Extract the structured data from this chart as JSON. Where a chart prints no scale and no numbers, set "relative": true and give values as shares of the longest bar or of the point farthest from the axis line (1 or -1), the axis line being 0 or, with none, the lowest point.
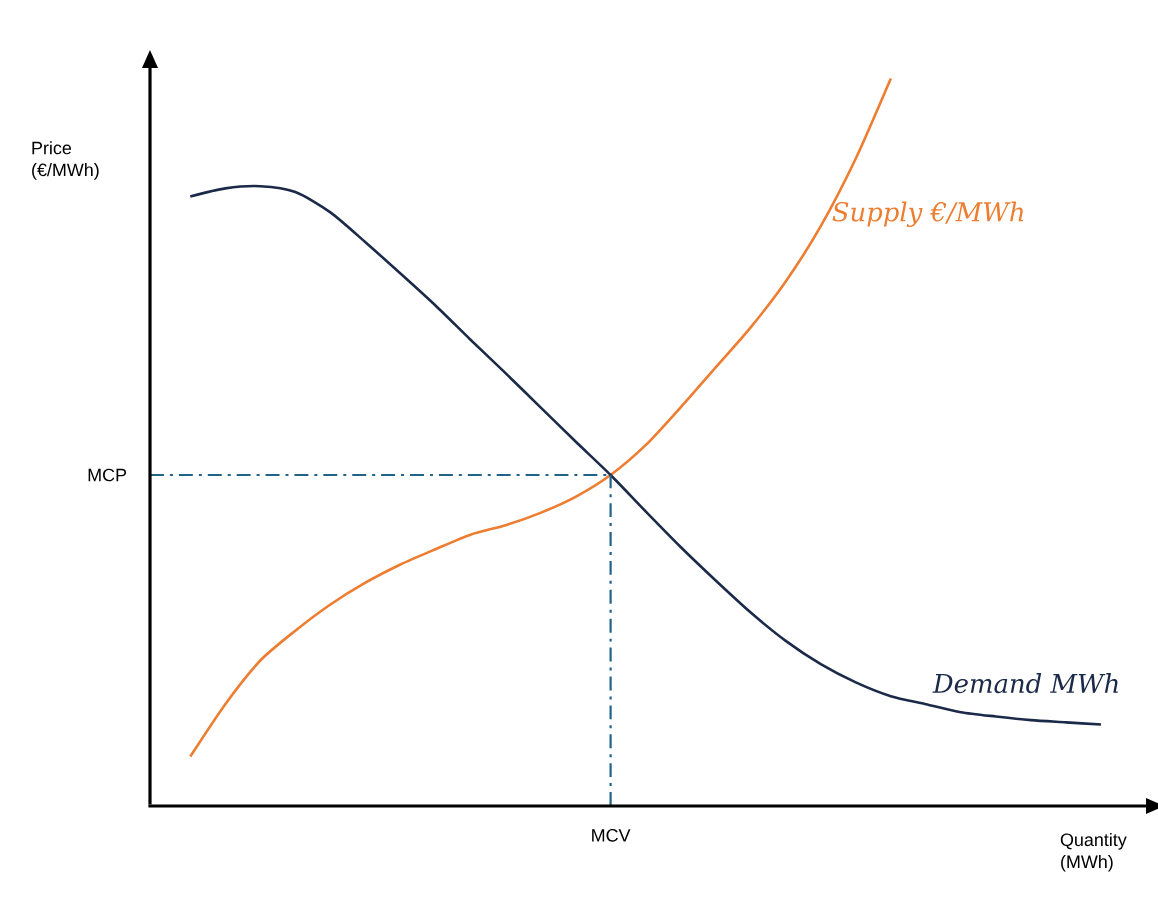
{
  "chart_data": {
    "type": "line",
    "relative": true,
    "xlabel": "Quantity (MWh)",
    "ylabel": "Price (€/MWh)",
    "categories": [
      null,
      null,
      null,
      null,
      null,
      null,
      null,
      null,
      null,
      null,
      null,
      null,
      null,
      null,
      null,
      null,
      null,
      null,
      null,
      null,
      null,
      null,
      null,
      null,
      null,
      null,
      null
    ],
    "series": [
      {
        "name": "Supply €/MWh",
        "color": "#ed7d31",
        "values": [
          0.068,
          0.14,
          0.2,
          0.241,
          0.277,
          0.307,
          0.332,
          0.353,
          0.373,
          0.386,
          0.403,
          0.425,
          0.455,
          0.496,
          0.548,
          0.603,
          0.658,
          0.721,
          0.797,
          0.89,
          1.0,
          null,
          null,
          null,
          null,
          null,
          null
        ]
      },
      {
        "name": "Demand MWh",
        "color": "#1b2a48",
        "values": [
          0.838,
          0.849,
          0.852,
          0.844,
          0.816,
          0.775,
          0.732,
          0.688,
          0.641,
          0.595,
          0.548,
          0.501,
          0.455,
          0.405,
          0.356,
          0.31,
          0.266,
          0.227,
          0.195,
          0.17,
          0.151,
          0.14,
          0.129,
          0.123,
          0.118,
          0.115,
          0.112
        ]
      }
    ],
    "ref_lines": [
      {
        "axis": "y",
        "value": 0.455,
        "label": "MCP",
        "color": "#1f6388",
        "line_style": "dashdot"
      },
      {
        "axis": "x",
        "value": "MCV",
        "color": "#1f6388",
        "line_style": "dashdot"
      }
    ],
    "legend": false,
    "line_style": "solid",
    "marker": "none"
  }
}
